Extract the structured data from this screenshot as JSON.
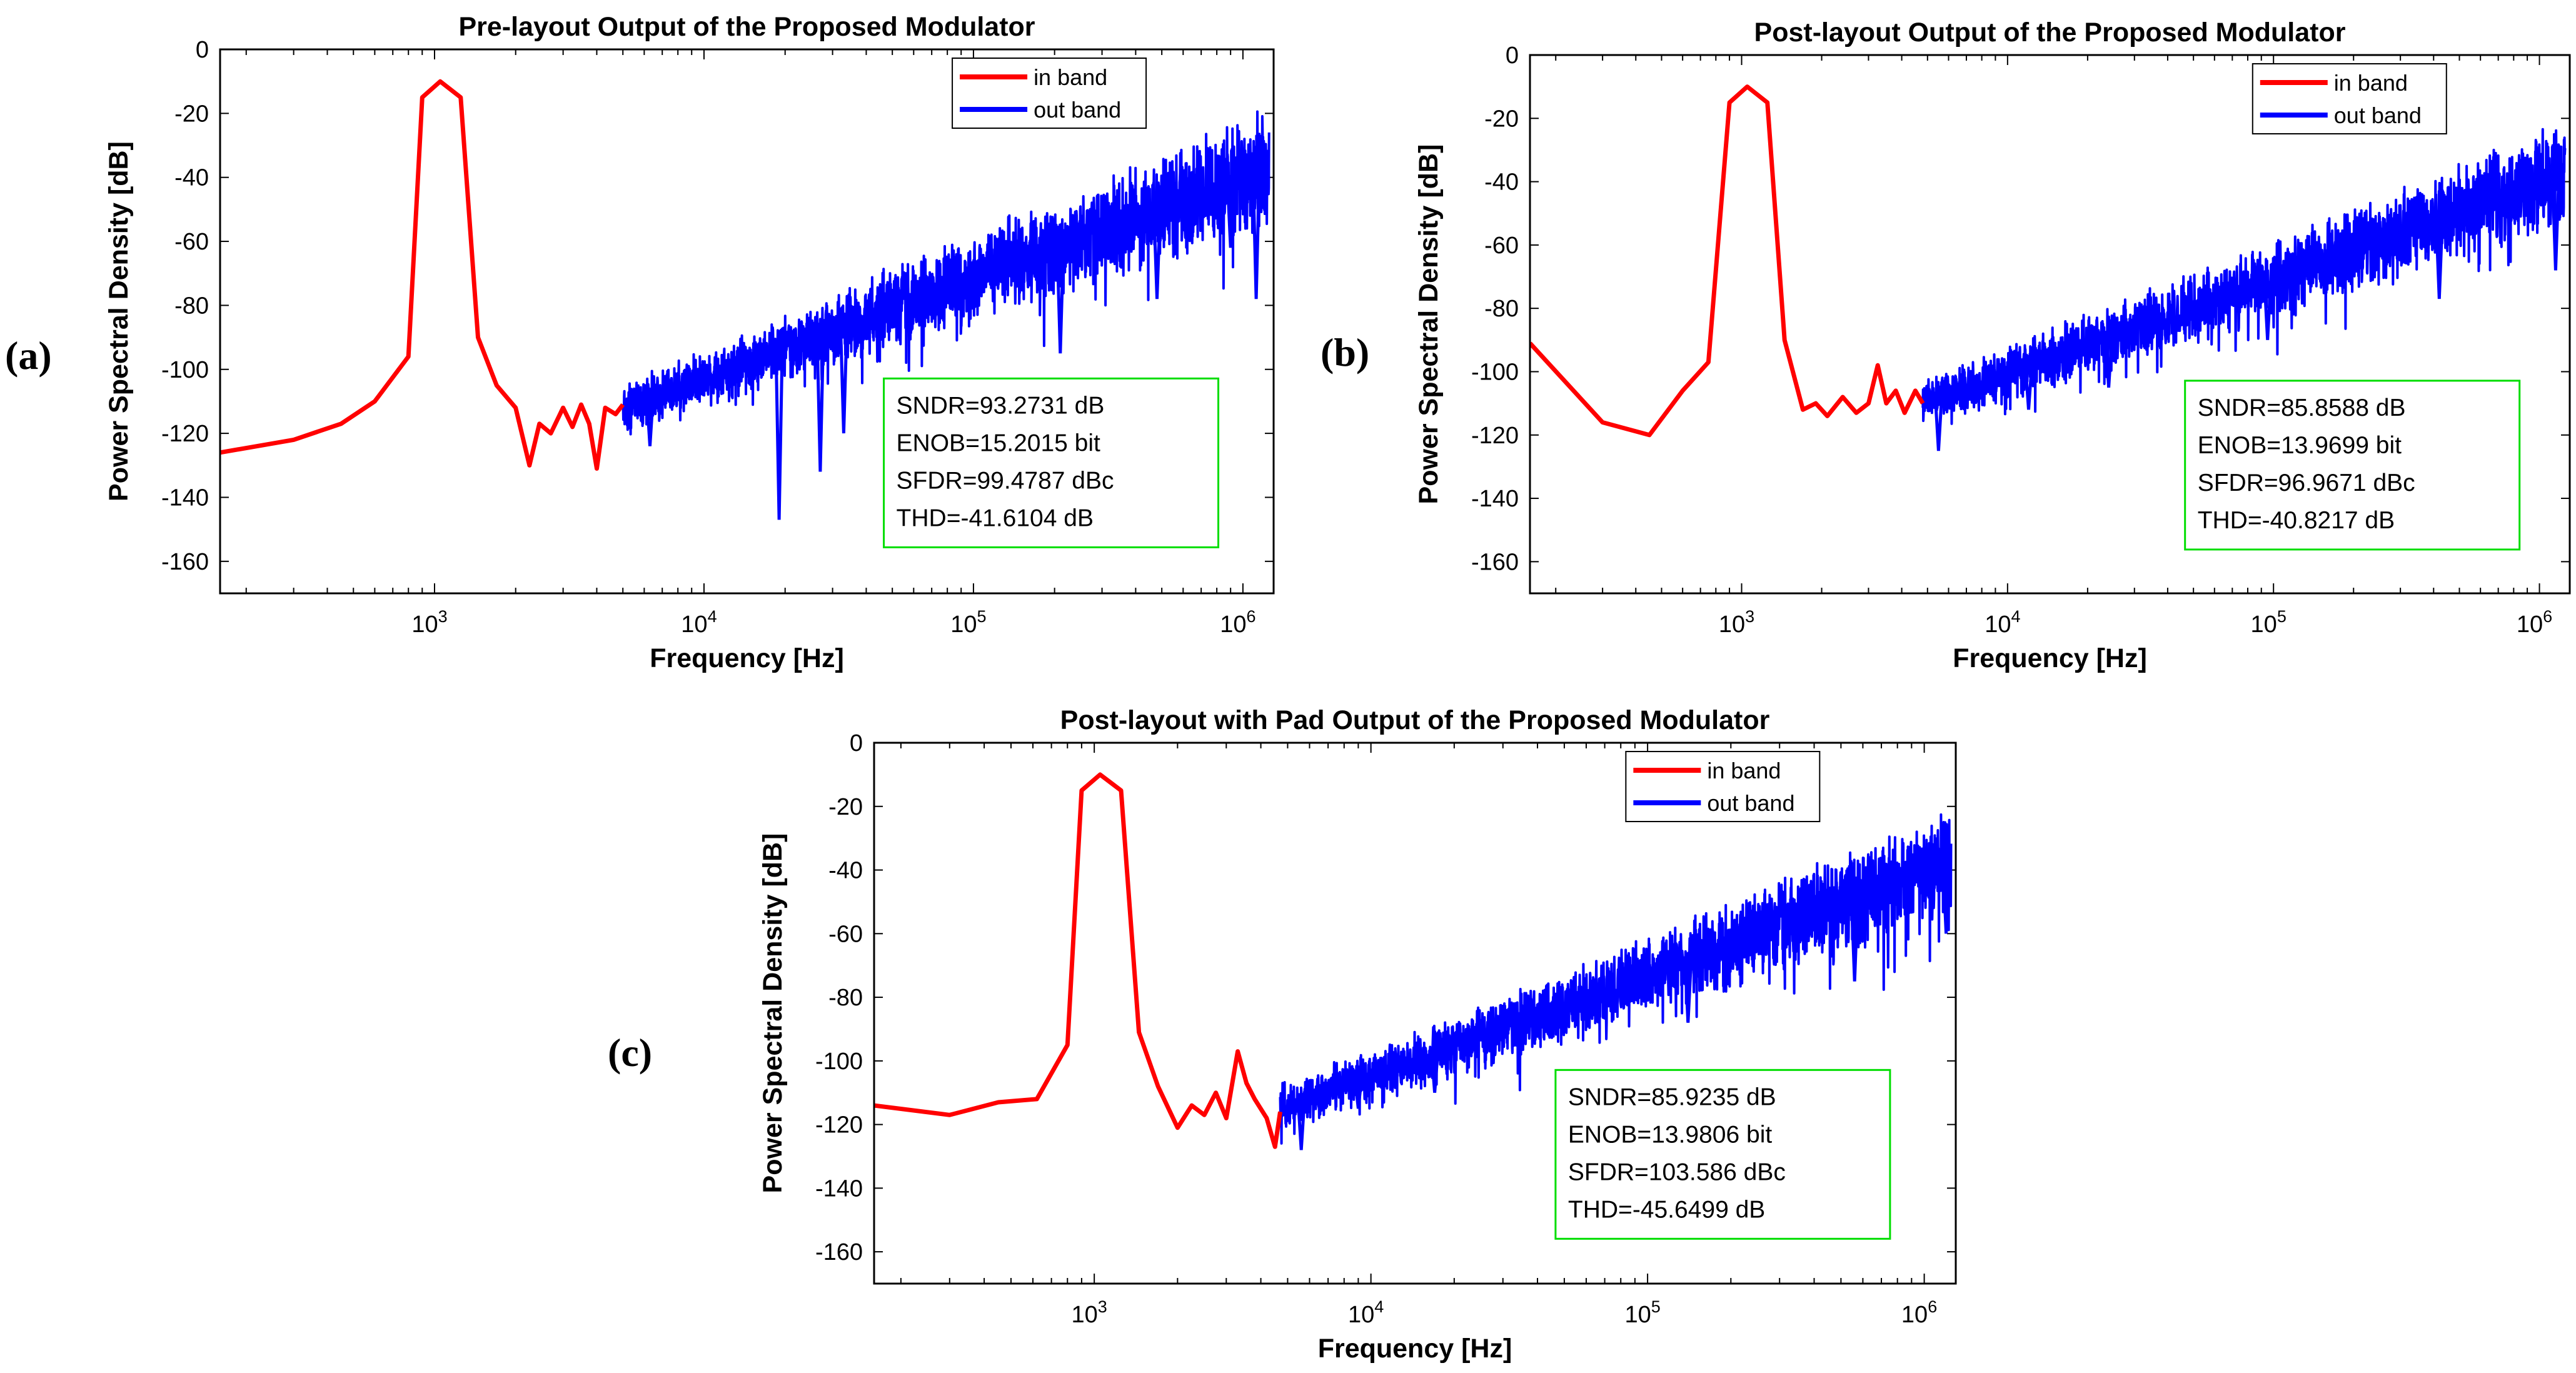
{
  "figure": {
    "legend": {
      "in_band": "in band",
      "out_band": "out band"
    },
    "xlabel": "Frequency [Hz]",
    "ylabel": "Power Spectral Density [dB]",
    "colors": {
      "in_band": "#ff0000",
      "out_band": "#0000ff",
      "stats_border": "#00dd00",
      "axes": "#000000"
    }
  },
  "chart_data": [
    {
      "panel": "(a)",
      "type": "line",
      "title": "Pre-layout Output of the Proposed Modulator",
      "xlabel": "Frequency [Hz]",
      "ylabel": "Power Spectral Density [dB]",
      "xscale": "log",
      "xlim": [
        160,
        1300000
      ],
      "ylim": [
        -170,
        0
      ],
      "yticks": [
        0,
        -20,
        -40,
        -60,
        -80,
        -100,
        -120,
        -140,
        -160
      ],
      "xticks": [
        {
          "value": 1000,
          "label": "10",
          "exp": "3"
        },
        {
          "value": 10000,
          "label": "10",
          "exp": "4"
        },
        {
          "value": 100000,
          "label": "10",
          "exp": "5"
        },
        {
          "value": 1000000,
          "label": "10",
          "exp": "6"
        }
      ],
      "legend": [
        "in band",
        "out band"
      ],
      "legend_position": "top-right",
      "stats": [
        "SNDR=93.2731 dB",
        "ENOB=15.2015 bit",
        "SFDR=99.4787 dBc",
        "THD=-41.6104 dB"
      ],
      "series": [
        {
          "name": "in band",
          "color": "#ff0000",
          "points": [
            [
              160,
              -126
            ],
            [
              300,
              -122
            ],
            [
              450,
              -117
            ],
            [
              600,
              -110
            ],
            [
              800,
              -96
            ],
            [
              900,
              -15
            ],
            [
              1050,
              -10
            ],
            [
              1250,
              -15
            ],
            [
              1450,
              -90
            ],
            [
              1700,
              -105
            ],
            [
              2000,
              -112
            ],
            [
              2250,
              -130
            ],
            [
              2450,
              -117
            ],
            [
              2700,
              -120
            ],
            [
              3000,
              -112
            ],
            [
              3250,
              -118
            ],
            [
              3500,
              -111
            ],
            [
              3750,
              -117
            ],
            [
              4000,
              -131
            ],
            [
              4300,
              -112
            ],
            [
              4700,
              -114
            ],
            [
              5000,
              -111
            ]
          ]
        },
        {
          "name": "out band",
          "color": "#0000ff",
          "lf_dB": -112,
          "hf_dB": -37,
          "f0": 5000,
          "f1": 1250000,
          "spread": 17,
          "dips": [
            [
              6300,
              -124
            ],
            [
              19000,
              -147
            ],
            [
              27000,
              -132
            ],
            [
              33000,
              -120
            ],
            [
              210000,
              -95
            ],
            [
              480000,
              -78
            ],
            [
              900000,
              -62
            ],
            [
              1120000,
              -78
            ]
          ]
        }
      ]
    },
    {
      "panel": "(b)",
      "type": "line",
      "title": "Post-layout Output of the Proposed Modulator",
      "xlabel": "Frequency [Hz]",
      "ylabel": "Power Spectral Density [dB]",
      "xscale": "log",
      "xlim": [
        160,
        1300000
      ],
      "ylim": [
        -170,
        0
      ],
      "yticks": [
        0,
        -20,
        -40,
        -60,
        -80,
        -100,
        -120,
        -140,
        -160
      ],
      "xticks": [
        {
          "value": 1000,
          "label": "10",
          "exp": "3"
        },
        {
          "value": 10000,
          "label": "10",
          "exp": "4"
        },
        {
          "value": 100000,
          "label": "10",
          "exp": "5"
        },
        {
          "value": 1000000,
          "label": "10",
          "exp": "6"
        }
      ],
      "legend": [
        "in band",
        "out band"
      ],
      "legend_position": "top-right",
      "stats": [
        "SNDR=85.8588 dB",
        "ENOB=13.9699 bit",
        "SFDR=96.9671 dBc",
        "THD=-40.8217 dB"
      ],
      "series": [
        {
          "name": "in band",
          "color": "#ff0000",
          "points": [
            [
              160,
              -91
            ],
            [
              300,
              -116
            ],
            [
              450,
              -120
            ],
            [
              600,
              -106
            ],
            [
              750,
              -97
            ],
            [
              900,
              -15
            ],
            [
              1050,
              -10
            ],
            [
              1250,
              -15
            ],
            [
              1450,
              -90
            ],
            [
              1700,
              -112
            ],
            [
              1900,
              -110
            ],
            [
              2100,
              -114
            ],
            [
              2400,
              -108
            ],
            [
              2700,
              -113
            ],
            [
              3000,
              -110
            ],
            [
              3250,
              -98
            ],
            [
              3500,
              -110
            ],
            [
              3800,
              -106
            ],
            [
              4100,
              -113
            ],
            [
              4500,
              -106
            ],
            [
              4800,
              -110
            ]
          ]
        },
        {
          "name": "out band",
          "color": "#0000ff",
          "lf_dB": -110,
          "hf_dB": -38,
          "f0": 4800,
          "f1": 1250000,
          "spread": 15,
          "dips": [
            [
              5500,
              -125
            ],
            [
              12000,
              -112
            ],
            [
              24000,
              -105
            ],
            [
              95000,
              -90
            ],
            [
              420000,
              -77
            ],
            [
              1150000,
              -68
            ]
          ]
        }
      ]
    },
    {
      "panel": "(c)",
      "type": "line",
      "title": "Post-layout with Pad Output of the Proposed Modulator",
      "xlabel": "Frequency [Hz]",
      "ylabel": "Power Spectral Density [dB]",
      "xscale": "log",
      "xlim": [
        160,
        1300000
      ],
      "ylim": [
        -170,
        0
      ],
      "yticks": [
        0,
        -20,
        -40,
        -60,
        -80,
        -100,
        -120,
        -140,
        -160
      ],
      "xticks": [
        {
          "value": 1000,
          "label": "10",
          "exp": "3"
        },
        {
          "value": 10000,
          "label": "10",
          "exp": "4"
        },
        {
          "value": 100000,
          "label": "10",
          "exp": "5"
        },
        {
          "value": 1000000,
          "label": "10",
          "exp": "6"
        }
      ],
      "legend": [
        "in band",
        "out band"
      ],
      "legend_position": "top-right",
      "stats": [
        "SNDR=85.9235 dB",
        "ENOB=13.9806 bit",
        "SFDR=103.586 dBc",
        "THD=-45.6499 dB"
      ],
      "series": [
        {
          "name": "in band",
          "color": "#ff0000",
          "points": [
            [
              160,
              -114
            ],
            [
              300,
              -117
            ],
            [
              450,
              -113
            ],
            [
              620,
              -112
            ],
            [
              800,
              -95
            ],
            [
              900,
              -15
            ],
            [
              1050,
              -10
            ],
            [
              1250,
              -15
            ],
            [
              1450,
              -91
            ],
            [
              1700,
              -108
            ],
            [
              2000,
              -121
            ],
            [
              2250,
              -114
            ],
            [
              2500,
              -117
            ],
            [
              2750,
              -110
            ],
            [
              3000,
              -118
            ],
            [
              3300,
              -97
            ],
            [
              3550,
              -107
            ],
            [
              3800,
              -112
            ],
            [
              4200,
              -118
            ],
            [
              4500,
              -127
            ],
            [
              4700,
              -116
            ]
          ]
        },
        {
          "name": "out band",
          "color": "#0000ff",
          "lf_dB": -115,
          "hf_dB": -38,
          "f0": 4700,
          "f1": 1250000,
          "spread": 15,
          "dips": [
            [
              5600,
              -128
            ],
            [
              9000,
              -115
            ],
            [
              17000,
              -110
            ],
            [
              140000,
              -88
            ],
            [
              560000,
              -75
            ],
            [
              1200000,
              -60
            ]
          ]
        }
      ]
    }
  ]
}
